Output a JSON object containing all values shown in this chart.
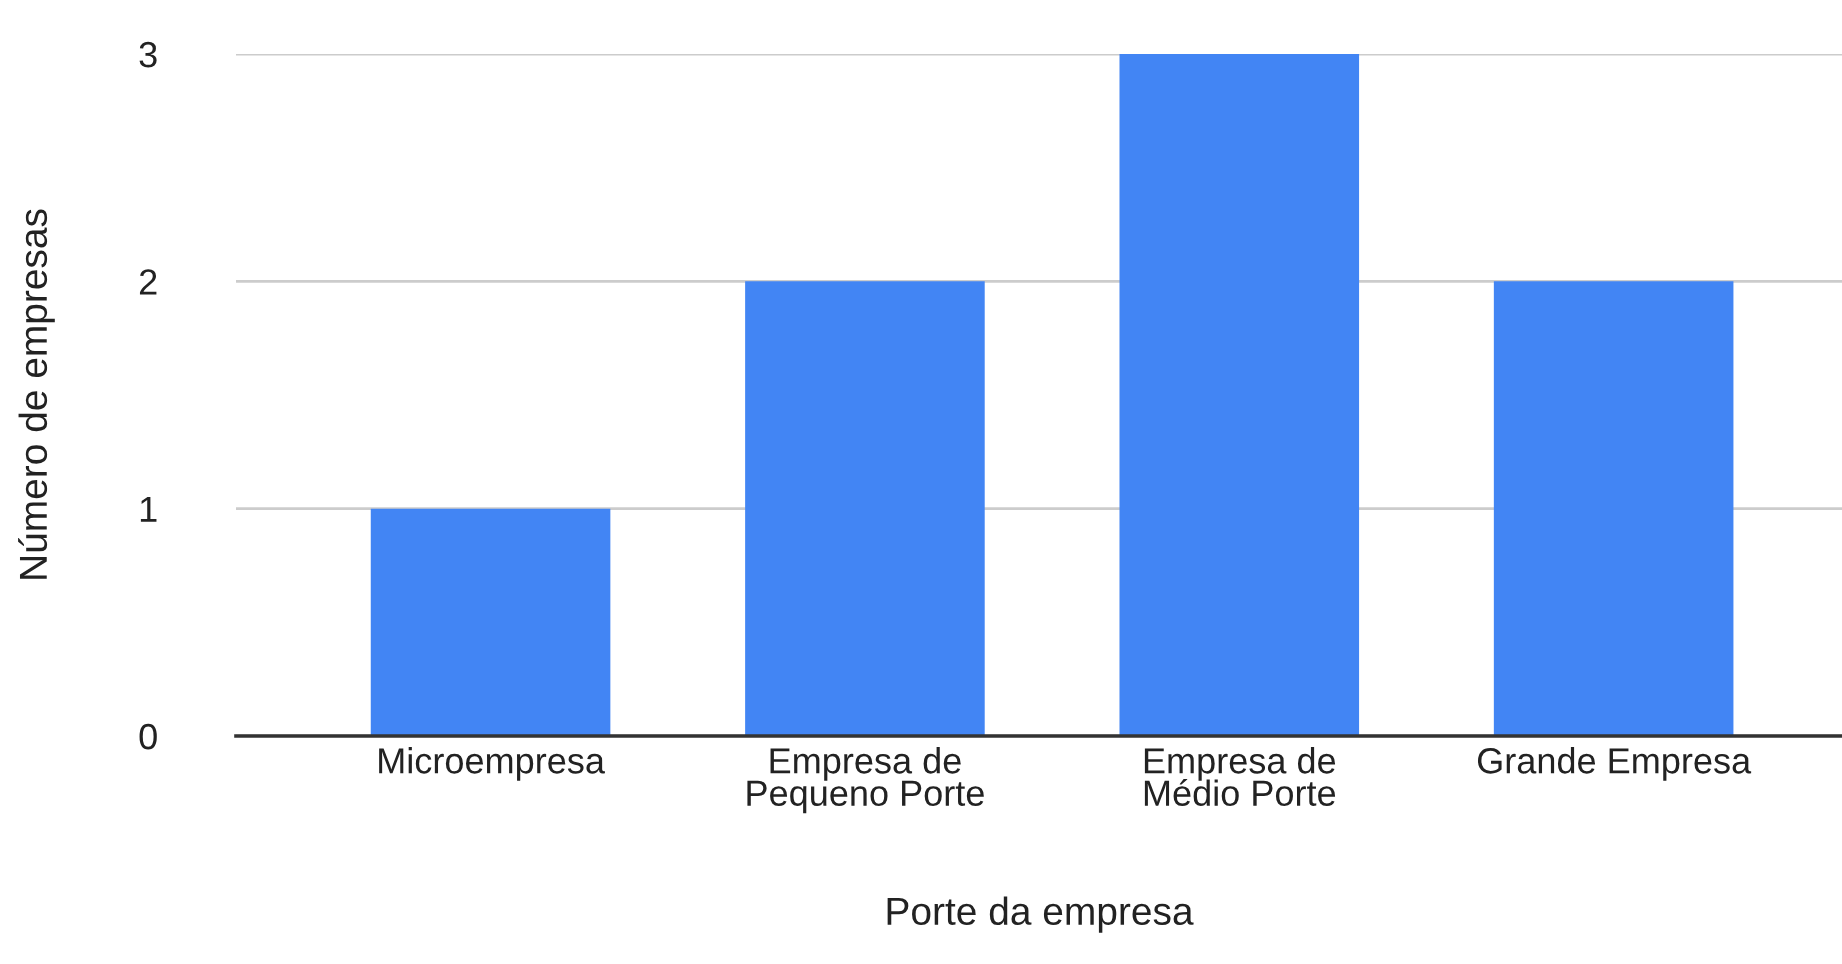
{
  "chart_data": {
    "type": "bar",
    "categories": [
      "Microempresa",
      "Empresa de\nPequeno Porte",
      "Empresa de\nMédio Porte",
      "Grande Empresa"
    ],
    "values": [
      1,
      2,
      3,
      2
    ],
    "color": "#4285f4",
    "xlabel": "Porte da empresa",
    "ylabel": "Número de empresas",
    "ylim": [
      0,
      3
    ],
    "yticks": [
      0,
      1,
      2,
      3
    ],
    "grid": "y",
    "legend": false
  }
}
